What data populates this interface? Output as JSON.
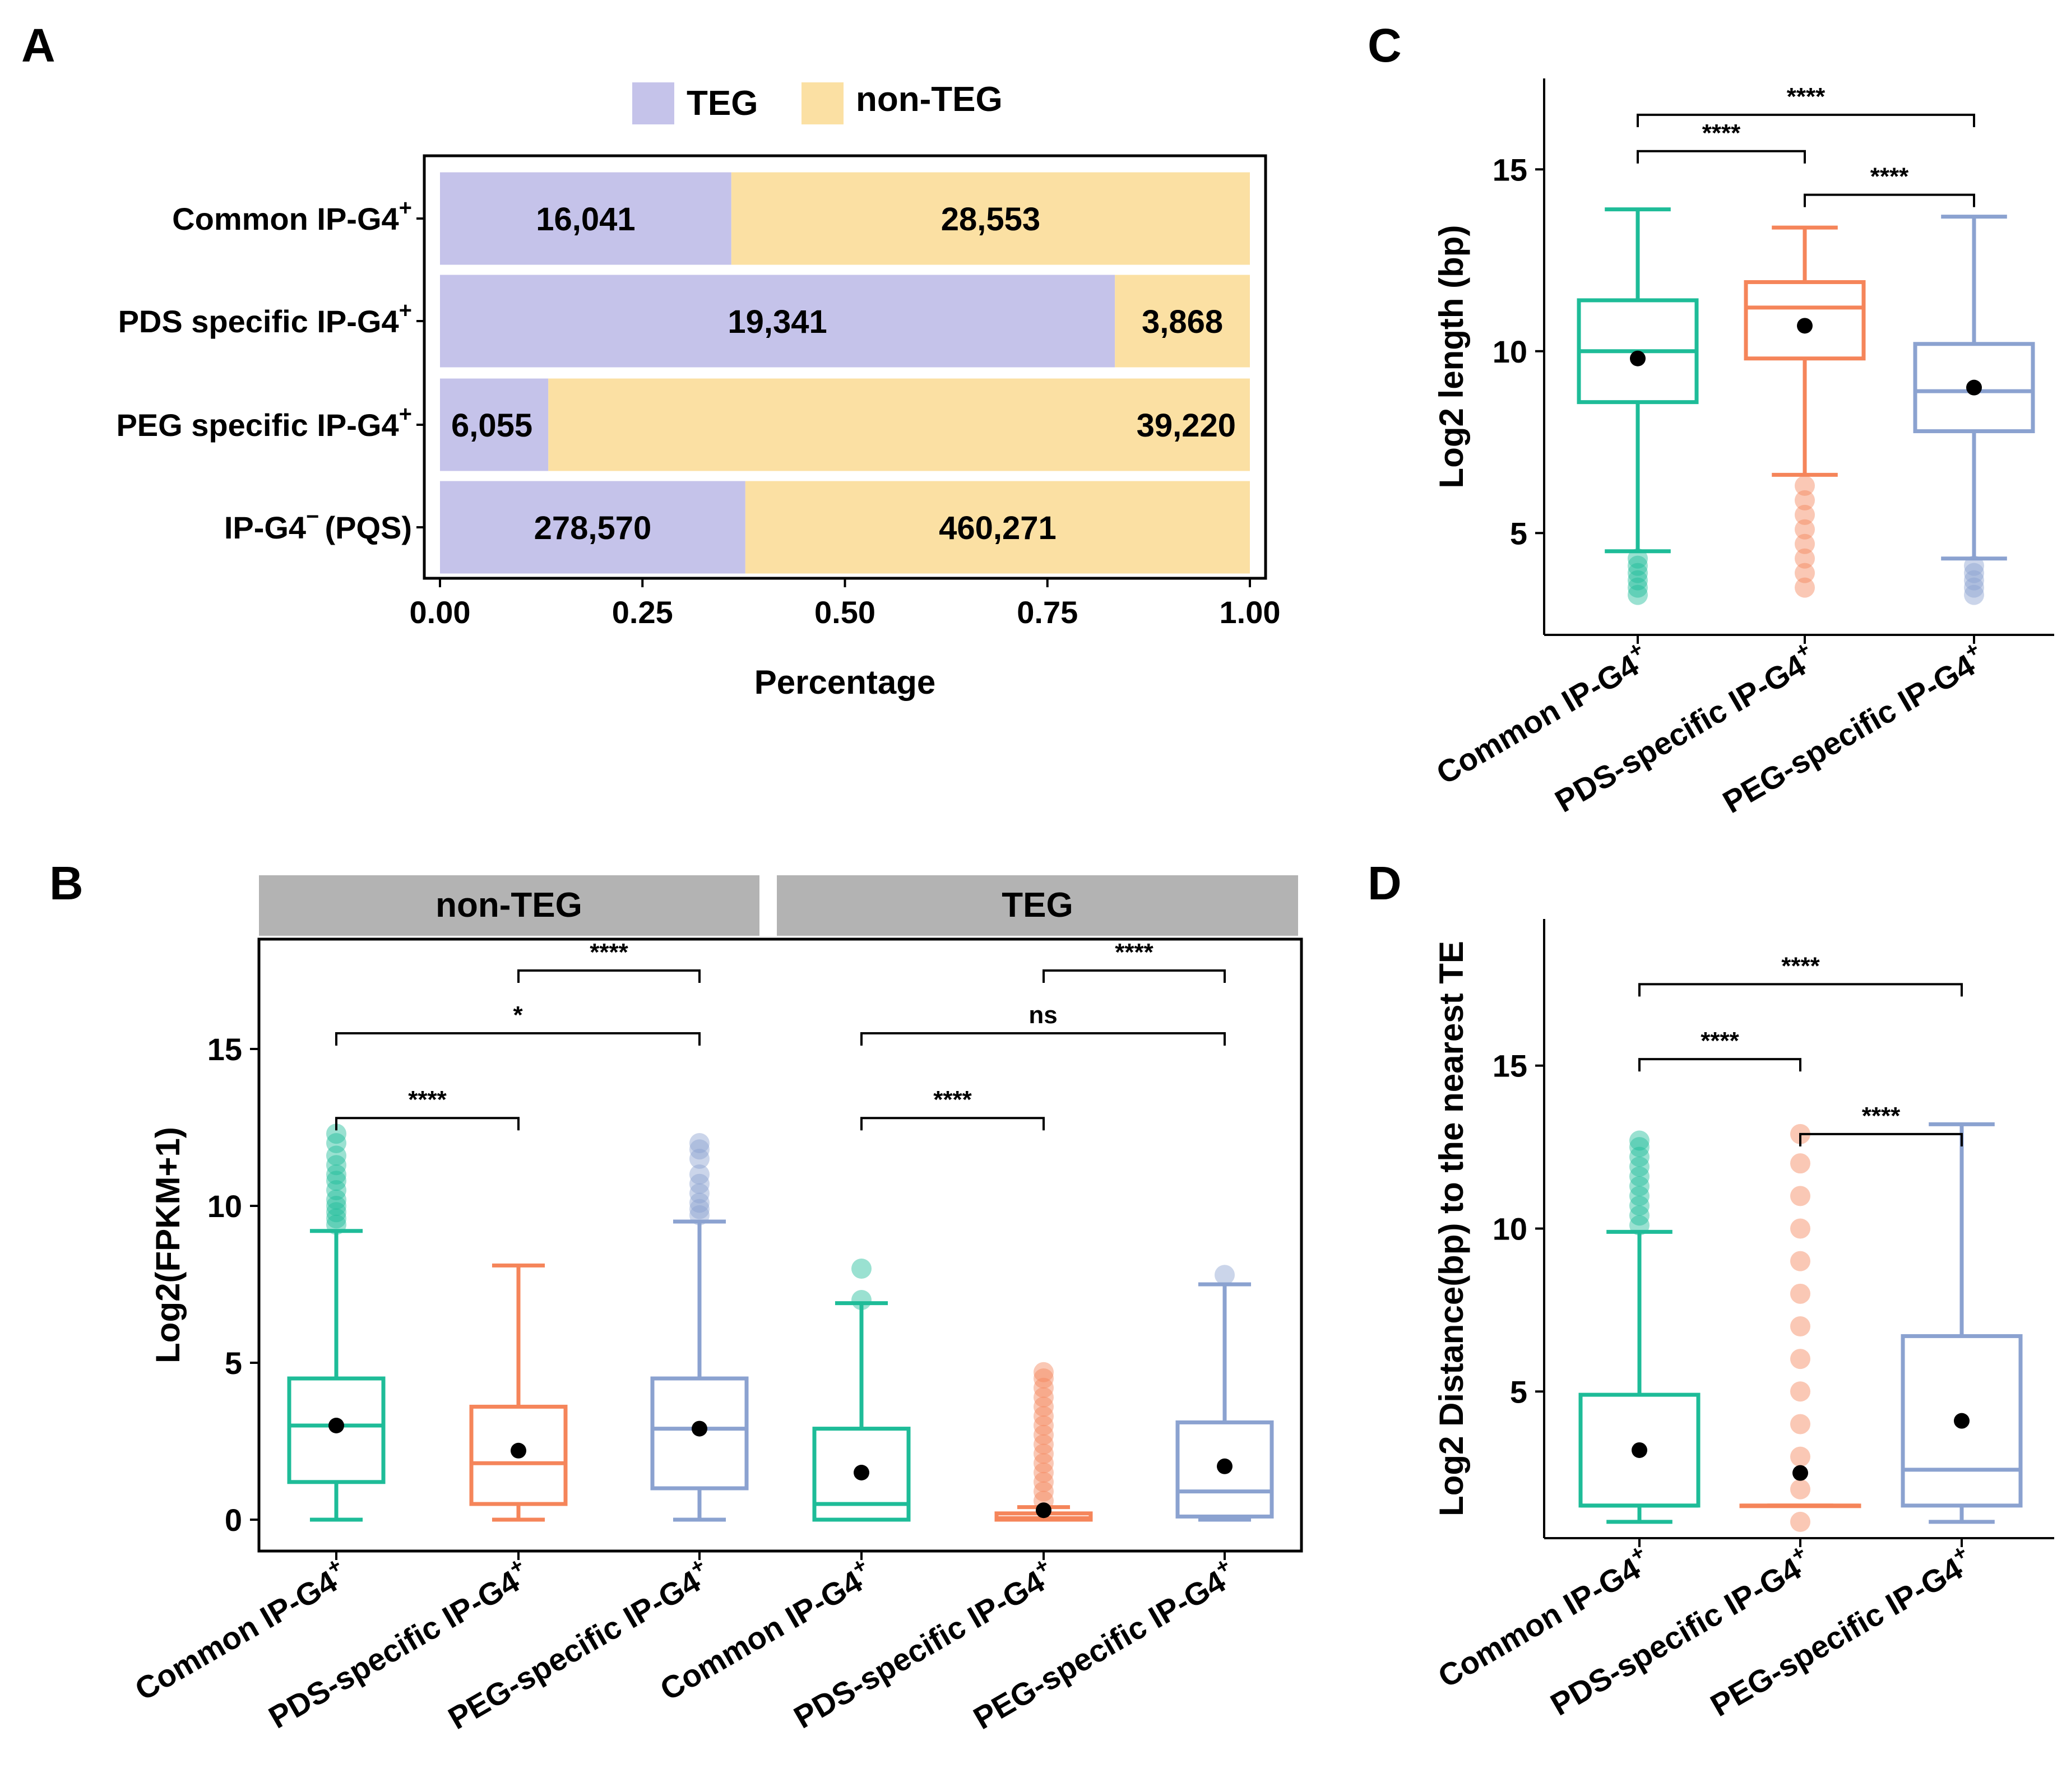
{
  "colors": {
    "teg": "#c5c3ea",
    "non_teg": "#fbe0a3",
    "common": "#1ebc98",
    "pds": "#f5855a",
    "peg": "#8ba2d0",
    "strip": "#b3b3b3"
  },
  "chart_data": [
    {
      "panel": "A",
      "type": "bar",
      "orientation": "horizontal",
      "stacked": true,
      "xlabel": "Percentage",
      "ylabel": "",
      "xlim": [
        0,
        1
      ],
      "xticks": [
        "0.00",
        "0.25",
        "0.50",
        "0.75",
        "1.00"
      ],
      "legend": [
        {
          "key": "teg",
          "label": "TEG"
        },
        {
          "key": "non_teg",
          "label": "non-TEG"
        }
      ],
      "rows": [
        {
          "label": "Common IP-G4",
          "sup": "+",
          "teg": 16041,
          "non_teg": 28553,
          "teg_label": "16,041",
          "non_teg_label": "28,553"
        },
        {
          "label": "PDS specific IP-G4",
          "sup": "+",
          "teg": 19341,
          "non_teg": 3868,
          "teg_label": "19,341",
          "non_teg_label": "3,868"
        },
        {
          "label": "PEG specific IP-G4",
          "sup": "+",
          "teg": 6055,
          "non_teg": 39220,
          "teg_label": "6,055",
          "non_teg_label": "39,220"
        },
        {
          "label": "IP-G4",
          "sup": "−",
          "suffix": "(PQS)",
          "teg": 278570,
          "non_teg": 460271,
          "teg_label": "278,570",
          "non_teg_label": "460,271"
        }
      ]
    },
    {
      "panel": "B",
      "type": "box",
      "ylabel": "Log2(FPKM+1)",
      "ylim": [
        -1,
        18.5
      ],
      "yticks": [
        0,
        5,
        10,
        15
      ],
      "facets": [
        {
          "strip": "non-TEG",
          "boxes": [
            {
              "category": "Common IP-G4",
              "sup": "+",
              "color": "common",
              "whisker_low": 0,
              "q1": 1.2,
              "median": 3.0,
              "q3": 4.5,
              "whisker_high": 9.2,
              "mean": 3.0,
              "outliers": [
                9.4,
                9.6,
                9.8,
                10.0,
                10.2,
                10.5,
                10.8,
                11.0,
                11.3,
                11.6,
                12.0,
                12.3
              ]
            },
            {
              "category": "PDS-specific IP-G4",
              "sup": "+",
              "color": "pds",
              "whisker_low": 0,
              "q1": 0.5,
              "median": 1.8,
              "q3": 3.6,
              "whisker_high": 8.1,
              "mean": 2.2,
              "outliers": []
            },
            {
              "category": "PEG-specific IP-G4",
              "sup": "+",
              "color": "peg",
              "whisker_low": 0,
              "q1": 1.0,
              "median": 2.9,
              "q3": 4.5,
              "whisker_high": 9.5,
              "mean": 2.9,
              "outliers": [
                9.7,
                9.9,
                10.1,
                10.4,
                10.7,
                11.0,
                11.5,
                11.8,
                12.0
              ]
            }
          ],
          "comparisons": [
            {
              "from": 0,
              "to": 2,
              "label": "*",
              "y": 15.5
            },
            {
              "from": 1,
              "to": 2,
              "label": "****",
              "y": 17.5
            },
            {
              "from": 0,
              "to": 1,
              "label": "****",
              "y": 12.8
            }
          ]
        },
        {
          "strip": "TEG",
          "boxes": [
            {
              "category": "Common IP-G4",
              "sup": "+",
              "color": "common",
              "whisker_low": 0,
              "q1": 0.0,
              "median": 0.5,
              "q3": 2.9,
              "whisker_high": 6.9,
              "mean": 1.5,
              "outliers": [
                7.0,
                8.0
              ]
            },
            {
              "category": "PDS-specific IP-G4",
              "sup": "+",
              "color": "pds",
              "whisker_low": 0,
              "q1": 0.0,
              "median": 0.05,
              "q3": 0.2,
              "whisker_high": 0.4,
              "mean": 0.3,
              "outliers": [
                0.6,
                0.9,
                1.2,
                1.5,
                1.8,
                2.1,
                2.4,
                2.7,
                3.0,
                3.3,
                3.6,
                3.9,
                4.2,
                4.5,
                4.7
              ]
            },
            {
              "category": "PEG-specific IP-G4",
              "sup": "+",
              "color": "peg",
              "whisker_low": 0,
              "q1": 0.1,
              "median": 0.9,
              "q3": 3.1,
              "whisker_high": 7.5,
              "mean": 1.7,
              "outliers": [
                7.8
              ]
            }
          ],
          "comparisons": [
            {
              "from": 0,
              "to": 2,
              "label": "ns",
              "y": 15.5
            },
            {
              "from": 1,
              "to": 2,
              "label": "****",
              "y": 17.5
            },
            {
              "from": 0,
              "to": 1,
              "label": "****",
              "y": 12.8
            }
          ]
        }
      ]
    },
    {
      "panel": "C",
      "type": "box",
      "ylabel": "Log2 length (bp)",
      "ylim": [
        2.2,
        17.5
      ],
      "yticks": [
        5,
        10,
        15
      ],
      "boxes": [
        {
          "category": "Common IP-G4",
          "sup": "+",
          "color": "common",
          "whisker_low": 4.5,
          "q1": 8.6,
          "median": 10.0,
          "q3": 11.4,
          "whisker_high": 13.9,
          "mean": 9.8,
          "outliers": [
            3.3,
            3.5,
            3.7,
            3.9,
            4.1,
            4.3
          ]
        },
        {
          "category": "PDS-specific IP-G4",
          "sup": "+",
          "color": "pds",
          "whisker_low": 6.6,
          "q1": 9.8,
          "median": 11.2,
          "q3": 11.9,
          "whisker_high": 13.4,
          "mean": 10.7,
          "outliers": [
            3.5,
            3.9,
            4.3,
            4.7,
            5.1,
            5.5,
            5.9,
            6.3
          ]
        },
        {
          "category": "PEG-specific IP-G4",
          "sup": "+",
          "color": "peg",
          "whisker_low": 4.3,
          "q1": 7.8,
          "median": 8.9,
          "q3": 10.2,
          "whisker_high": 13.7,
          "mean": 9.0,
          "outliers": [
            3.3,
            3.5,
            3.7,
            3.9,
            4.1
          ]
        }
      ],
      "comparisons": [
        {
          "from": 0,
          "to": 2,
          "label": "****",
          "y": 16.5
        },
        {
          "from": 0,
          "to": 1,
          "label": "****",
          "y": 15.5
        },
        {
          "from": 1,
          "to": 2,
          "label": "****",
          "y": 14.3
        }
      ]
    },
    {
      "panel": "D",
      "type": "box",
      "ylabel": "Log2 Distance(bp) to the nearest TE",
      "ylim": [
        0.5,
        19.5
      ],
      "yticks": [
        5,
        10,
        15
      ],
      "boxes": [
        {
          "category": "Common IP-G4",
          "sup": "+",
          "color": "common",
          "whisker_low": 1.0,
          "q1": 1.5,
          "median": 1.5,
          "q3": 4.9,
          "whisker_high": 9.9,
          "mean": 3.2,
          "outliers": [
            10.1,
            10.4,
            10.7,
            11.0,
            11.3,
            11.6,
            11.9,
            12.2,
            12.5,
            12.7
          ]
        },
        {
          "category": "PDS-specific IP-G4",
          "sup": "+",
          "color": "pds",
          "whisker_low": 1.5,
          "q1": 1.5,
          "median": 1.5,
          "q3": 1.5,
          "whisker_high": 1.5,
          "mean": 2.5,
          "outliers": [
            1.0,
            2.0,
            3.0,
            4.0,
            5.0,
            6.0,
            7.0,
            8.0,
            9.0,
            10.0,
            11.0,
            12.0,
            12.9
          ]
        },
        {
          "category": "PEG-specific IP-G4",
          "sup": "+",
          "color": "peg",
          "whisker_low": 1.0,
          "q1": 1.5,
          "median": 2.6,
          "q3": 6.7,
          "whisker_high": 13.2,
          "mean": 4.1,
          "outliers": []
        }
      ],
      "comparisons": [
        {
          "from": 0,
          "to": 2,
          "label": "****",
          "y": 17.5
        },
        {
          "from": 0,
          "to": 1,
          "label": "****",
          "y": 15.2
        },
        {
          "from": 1,
          "to": 2,
          "label": "****",
          "y": 12.9
        }
      ]
    }
  ]
}
